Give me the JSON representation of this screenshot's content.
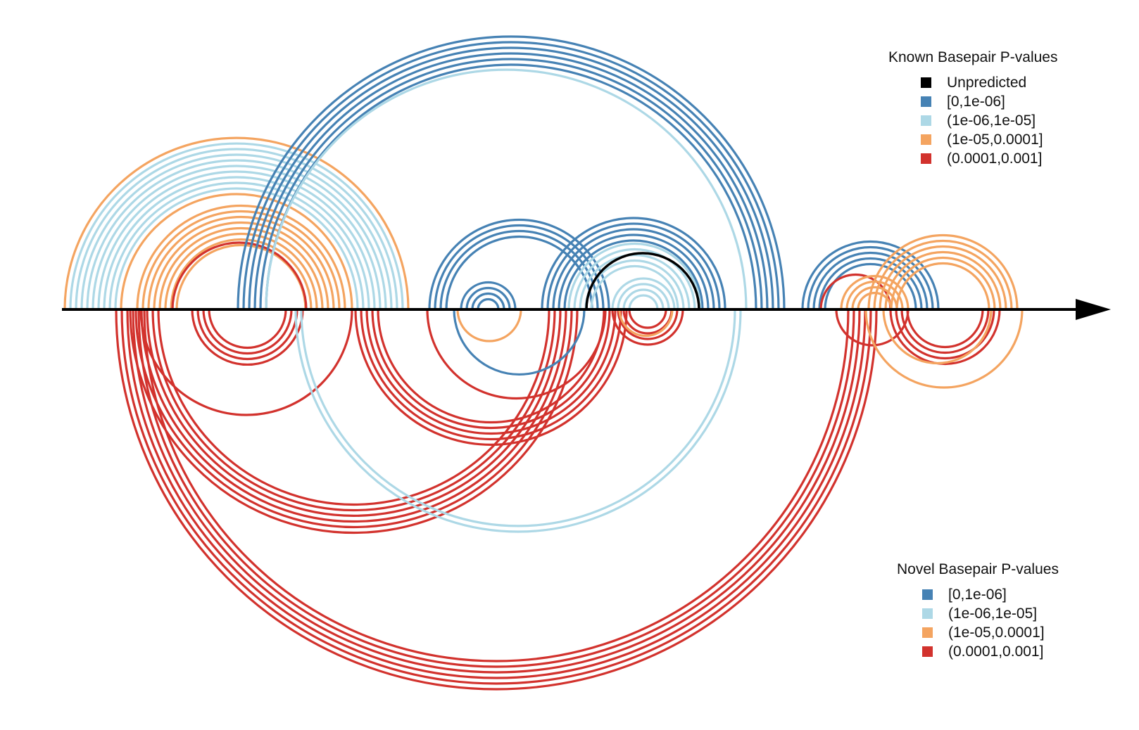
{
  "legends": {
    "known": {
      "title": "Known Basepair P-values",
      "items": [
        {
          "label": "Unpredicted",
          "color": "#000000"
        },
        {
          "label": "[0,1e-06]",
          "color": "#4682b4"
        },
        {
          "label": "(1e-06,1e-05]",
          "color": "#add8e6"
        },
        {
          "label": "(1e-05,0.0001]",
          "color": "#f4a460"
        },
        {
          "label": "(0.0001,0.001]",
          "color": "#d2322d"
        }
      ]
    },
    "novel": {
      "title": "Novel Basepair P-values",
      "items": [
        {
          "label": "[0,1e-06]",
          "color": "#4682b4"
        },
        {
          "label": "(1e-06,1e-05]",
          "color": "#add8e6"
        },
        {
          "label": "(1e-05,0.0001]",
          "color": "#f4a460"
        },
        {
          "label": "(0.0001,0.001]",
          "color": "#d2322d"
        }
      ]
    }
  },
  "colors": {
    "unpredicted": "#000000",
    "band1": "#4682b4",
    "band2": "#add8e6",
    "band3": "#f4a460",
    "band4": "#d2322d",
    "axis": "#000000"
  }
}
